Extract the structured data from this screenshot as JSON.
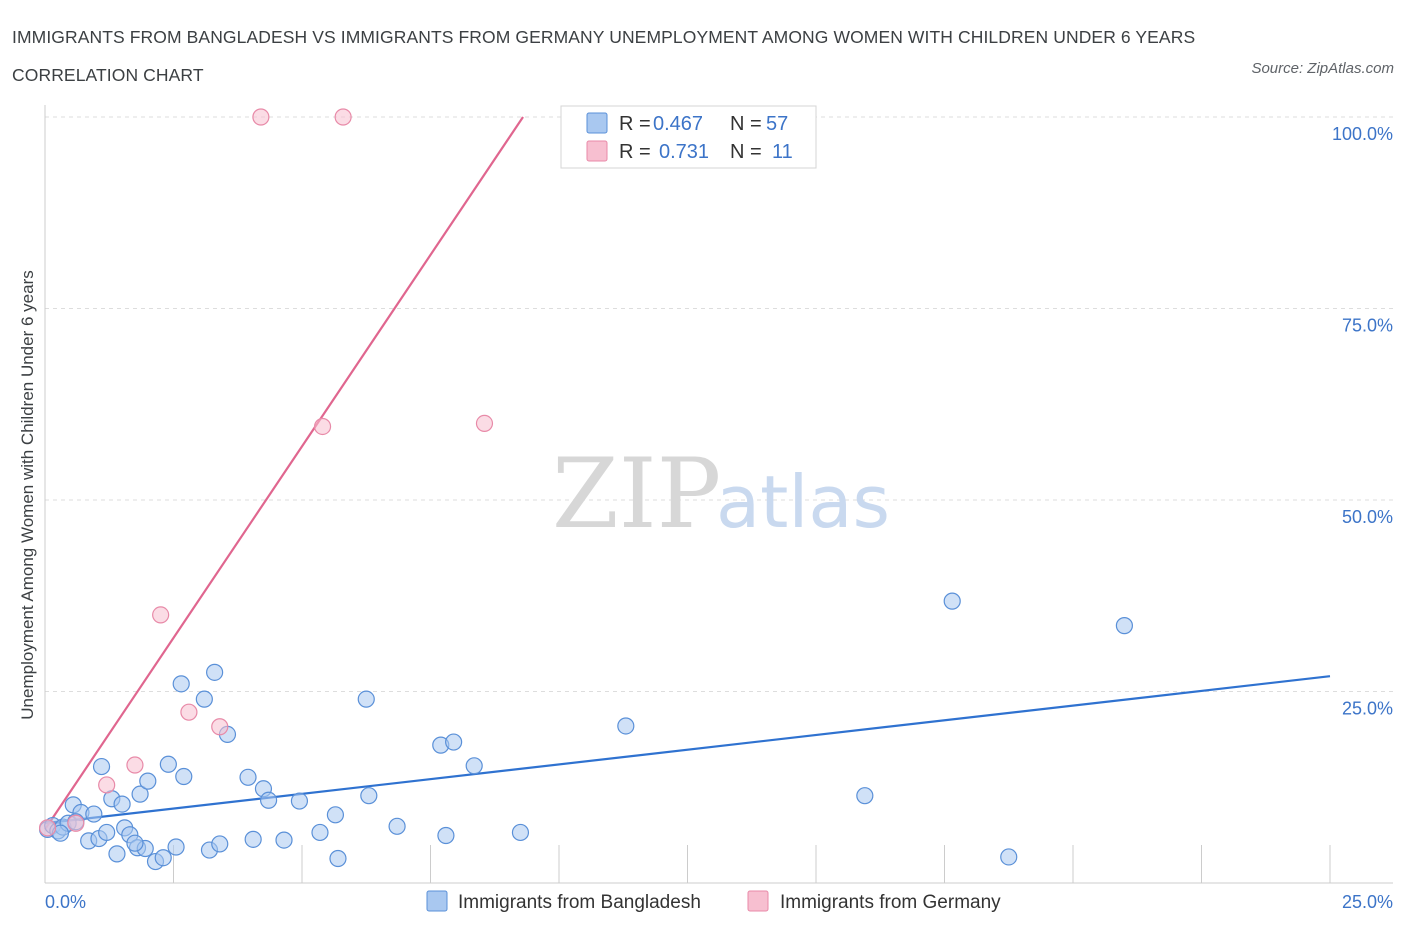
{
  "header": {
    "title": "IMMIGRANTS FROM BANGLADESH VS IMMIGRANTS FROM GERMANY UNEMPLOYMENT AMONG WOMEN WITH CHILDREN UNDER 6 YEARS CORRELATION CHART",
    "source": "Source: ZipAtlas.com"
  },
  "watermark": {
    "zip": "ZIP",
    "atlas": "atlas"
  },
  "colors": {
    "bangladesh_fill": "#a9c8f0",
    "bangladesh_stroke": "#5a90d8",
    "bangladesh_line": "#2f72d0",
    "germany_fill": "#f7bfd0",
    "germany_stroke": "#e88aa8",
    "germany_line": "#e0668f",
    "grid": "#dddddd",
    "tick_text": "#3c74c8"
  },
  "chart_data": {
    "type": "scatter",
    "title": "IMMIGRANTS FROM BANGLADESH VS IMMIGRANTS FROM GERMANY UNEMPLOYMENT AMONG WOMEN WITH CHILDREN UNDER 6 YEARS CORRELATION CHART",
    "xlabel": "",
    "ylabel": "Unemployment Among Women with Children Under 6 years",
    "xlim": [
      0,
      25
    ],
    "ylim": [
      0,
      100
    ],
    "x_tick_labels": {
      "left": "0.0%",
      "right": "25.0%"
    },
    "y_ticks": [
      {
        "value": 100,
        "label": "100.0%"
      },
      {
        "value": 75,
        "label": "75.0%"
      },
      {
        "value": 50,
        "label": "50.0%"
      },
      {
        "value": 25,
        "label": "25.0%"
      }
    ],
    "legend": {
      "r_label": "R =",
      "n_label": "N =",
      "entries": [
        {
          "series": "Immigrants from Bangladesh",
          "r": "0.467",
          "n": "57"
        },
        {
          "series": "Immigrants from Germany",
          "r": "0.731",
          "n": "11"
        }
      ]
    },
    "series": [
      {
        "name": "Immigrants from Bangladesh",
        "points": [
          {
            "x": 0.05,
            "y": 7.0
          },
          {
            "x": 0.15,
            "y": 7.5
          },
          {
            "x": 0.25,
            "y": 6.8
          },
          {
            "x": 0.35,
            "y": 7.3
          },
          {
            "x": 0.45,
            "y": 7.8
          },
          {
            "x": 0.55,
            "y": 10.2
          },
          {
            "x": 0.7,
            "y": 9.2
          },
          {
            "x": 0.85,
            "y": 5.5
          },
          {
            "x": 0.95,
            "y": 9.0
          },
          {
            "x": 1.05,
            "y": 5.8
          },
          {
            "x": 1.1,
            "y": 15.2
          },
          {
            "x": 1.2,
            "y": 6.6
          },
          {
            "x": 1.3,
            "y": 11.0
          },
          {
            "x": 1.4,
            "y": 3.8
          },
          {
            "x": 1.5,
            "y": 10.3
          },
          {
            "x": 1.55,
            "y": 7.2
          },
          {
            "x": 1.65,
            "y": 6.3
          },
          {
            "x": 1.8,
            "y": 4.6
          },
          {
            "x": 1.85,
            "y": 11.6
          },
          {
            "x": 1.95,
            "y": 4.5
          },
          {
            "x": 2.0,
            "y": 13.3
          },
          {
            "x": 2.15,
            "y": 2.8
          },
          {
            "x": 2.3,
            "y": 3.3
          },
          {
            "x": 2.4,
            "y": 15.5
          },
          {
            "x": 2.55,
            "y": 4.7
          },
          {
            "x": 2.65,
            "y": 26.0
          },
          {
            "x": 2.7,
            "y": 13.9
          },
          {
            "x": 3.1,
            "y": 24.0
          },
          {
            "x": 3.2,
            "y": 4.3
          },
          {
            "x": 3.3,
            "y": 27.5
          },
          {
            "x": 3.4,
            "y": 5.1
          },
          {
            "x": 3.55,
            "y": 19.4
          },
          {
            "x": 3.95,
            "y": 13.8
          },
          {
            "x": 4.05,
            "y": 5.7
          },
          {
            "x": 4.25,
            "y": 12.3
          },
          {
            "x": 4.35,
            "y": 10.8
          },
          {
            "x": 4.65,
            "y": 5.6
          },
          {
            "x": 4.95,
            "y": 10.7
          },
          {
            "x": 5.35,
            "y": 6.6
          },
          {
            "x": 5.65,
            "y": 8.9
          },
          {
            "x": 5.7,
            "y": 3.2
          },
          {
            "x": 6.25,
            "y": 24.0
          },
          {
            "x": 6.3,
            "y": 11.4
          },
          {
            "x": 6.85,
            "y": 7.4
          },
          {
            "x": 7.7,
            "y": 18.0
          },
          {
            "x": 7.8,
            "y": 6.2
          },
          {
            "x": 7.95,
            "y": 18.4
          },
          {
            "x": 8.35,
            "y": 15.3
          },
          {
            "x": 9.25,
            "y": 6.6
          },
          {
            "x": 11.3,
            "y": 20.5
          },
          {
            "x": 15.95,
            "y": 11.4
          },
          {
            "x": 17.65,
            "y": 36.8
          },
          {
            "x": 18.75,
            "y": 3.4
          },
          {
            "x": 21.0,
            "y": 33.6
          },
          {
            "x": 0.6,
            "y": 8.0
          },
          {
            "x": 0.3,
            "y": 6.5
          },
          {
            "x": 1.75,
            "y": 5.2
          }
        ],
        "trendline": {
          "x": [
            0,
            25
          ],
          "y": [
            7.8,
            27.0
          ]
        }
      },
      {
        "name": "Immigrants from Germany",
        "points": [
          {
            "x": 0.05,
            "y": 7.2
          },
          {
            "x": 0.6,
            "y": 7.8
          },
          {
            "x": 1.2,
            "y": 12.8
          },
          {
            "x": 1.75,
            "y": 15.4
          },
          {
            "x": 2.25,
            "y": 35.0
          },
          {
            "x": 2.8,
            "y": 22.3
          },
          {
            "x": 3.4,
            "y": 20.4
          },
          {
            "x": 4.2,
            "y": 100.0
          },
          {
            "x": 5.4,
            "y": 59.6
          },
          {
            "x": 5.8,
            "y": 100.0
          },
          {
            "x": 8.55,
            "y": 60.0
          }
        ],
        "trendline": {
          "x": [
            0,
            9.3
          ],
          "y": [
            7.0,
            100.0
          ]
        }
      }
    ]
  }
}
